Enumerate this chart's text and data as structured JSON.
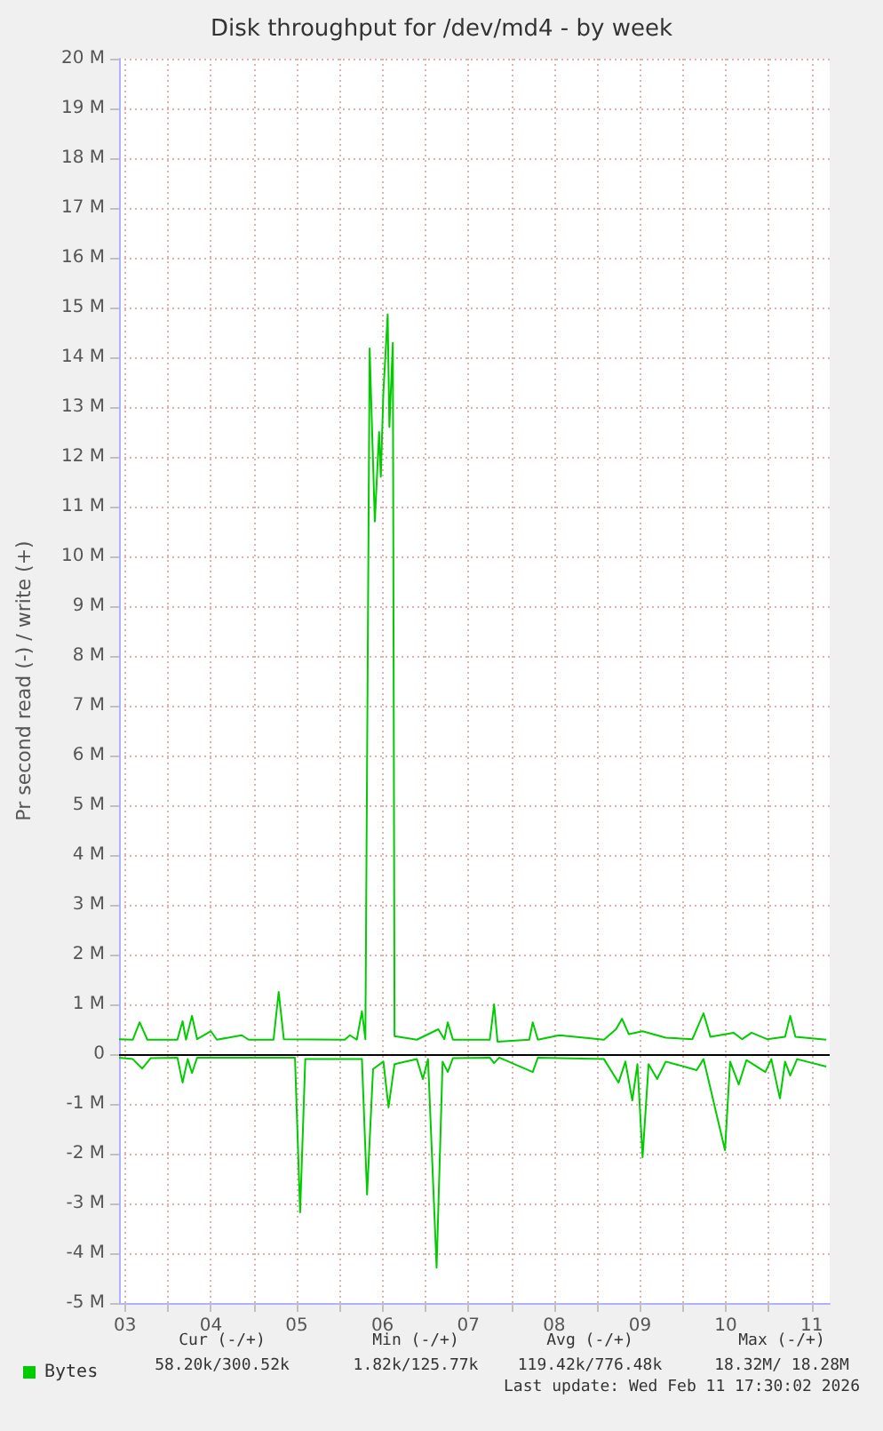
{
  "chart_data": {
    "type": "line",
    "title": "Disk throughput for /dev/md4 - by week",
    "ylabel": "Pr second read (-) / write (+)",
    "xlim": [
      3.43,
      11.71
    ],
    "xticks": [
      {
        "value": 3.5,
        "label": "03"
      },
      {
        "value": 4,
        "label": null
      },
      {
        "value": 4.5,
        "label": "04"
      },
      {
        "value": 5,
        "label": null
      },
      {
        "value": 5.5,
        "label": "05"
      },
      {
        "value": 6,
        "label": null
      },
      {
        "value": 6.5,
        "label": "06"
      },
      {
        "value": 7,
        "label": null
      },
      {
        "value": 7.5,
        "label": "07"
      },
      {
        "value": 8,
        "label": null
      },
      {
        "value": 8.5,
        "label": "08"
      },
      {
        "value": 9,
        "label": null
      },
      {
        "value": 9.5,
        "label": "09"
      },
      {
        "value": 10,
        "label": null
      },
      {
        "value": 10.5,
        "label": "10"
      },
      {
        "value": 11,
        "label": null
      },
      {
        "value": 11.5,
        "label": "11"
      }
    ],
    "ylim": [
      -5,
      20
    ],
    "yticks": [
      {
        "value": -5,
        "label": "-5 M"
      },
      {
        "value": -4,
        "label": "-4 M"
      },
      {
        "value": -3,
        "label": "-3 M"
      },
      {
        "value": -2,
        "label": "-2 M"
      },
      {
        "value": -1,
        "label": "-1 M"
      },
      0,
      {
        "value": 1,
        "label": "1 M"
      },
      {
        "value": 2,
        "label": "2 M"
      },
      {
        "value": 3,
        "label": "3 M"
      },
      {
        "value": 4,
        "label": "4 M"
      },
      {
        "value": 5,
        "label": "5 M"
      },
      {
        "value": 6,
        "label": "6 M"
      },
      {
        "value": 7,
        "label": "7 M"
      },
      {
        "value": 8,
        "label": "8 M"
      },
      {
        "value": 9,
        "label": "9 M"
      },
      {
        "value": 10,
        "label": "10 M"
      },
      {
        "value": 11,
        "label": "11 M"
      },
      {
        "value": 12,
        "label": "12 M"
      },
      {
        "value": 13,
        "label": "13 M"
      },
      {
        "value": 14,
        "label": "14 M"
      },
      {
        "value": 15,
        "label": "15 M"
      },
      {
        "value": 16,
        "label": "16 M"
      },
      {
        "value": 17,
        "label": "17 M"
      },
      {
        "value": 18,
        "label": "18 M"
      },
      {
        "value": 19,
        "label": "19 M"
      },
      {
        "value": 20,
        "label": "20 M"
      }
    ],
    "grid": true,
    "legend": "bottom left",
    "marker": "none",
    "line_style": "solid",
    "ref_lines": [
      {
        "axis": "y",
        "value": 0,
        "color": "#000000"
      }
    ],
    "annotations": [
      "Cur (-/+)",
      "Min (-/+)",
      "Avg (-/+)",
      "Max (-/+)",
      "58.20k/300.52k",
      "1.82k/125.77k",
      "119.42k/776.48k",
      "18.32M/ 18.28M",
      "Last update: Wed Feb 11 17:30:02 2026"
    ],
    "series": [
      {
        "name": "Bytes",
        "color": "#00cc00",
        "x": [
          3.43,
          3.59,
          3.67,
          3.76,
          4.11,
          4.17,
          4.21,
          4.28,
          4.34,
          4.5,
          4.57,
          4.86,
          4.94,
          5.23,
          5.29,
          5.35,
          6.06,
          6.12,
          6.2,
          6.26,
          6.3,
          6.35,
          6.41,
          6.46,
          6.48,
          6.51,
          6.56,
          6.58,
          6.62,
          6.64,
          6.9,
          7.15,
          7.22,
          7.26,
          7.32,
          7.75,
          7.8,
          7.84,
          8.21,
          8.25,
          8.31,
          8.56,
          9.08,
          9.22,
          9.29,
          9.37,
          9.53,
          9.8,
          10.11,
          10.24,
          10.32,
          10.59,
          10.69,
          10.8,
          10.98,
          11.19,
          11.25,
          11.31,
          11.67
        ],
        "values": [
          0.3,
          0.29,
          0.64,
          0.29,
          0.29,
          0.66,
          0.29,
          0.77,
          0.3,
          0.46,
          0.29,
          0.38,
          0.29,
          0.29,
          1.25,
          0.3,
          0.29,
          0.38,
          0.29,
          0.86,
          0.3,
          14.18,
          10.7,
          12.5,
          11.6,
          13.3,
          14.86,
          12.6,
          14.29,
          0.36,
          0.29,
          0.5,
          0.3,
          0.64,
          0.29,
          0.29,
          1.0,
          0.25,
          0.29,
          0.64,
          0.29,
          0.38,
          0.29,
          0.5,
          0.71,
          0.4,
          0.46,
          0.33,
          0.3,
          0.82,
          0.35,
          0.43,
          0.3,
          0.43,
          0.3,
          0.35,
          0.77,
          0.35,
          0.29
        ]
      },
      {
        "color": "#00cc00",
        "x": [
          3.43,
          3.59,
          3.7,
          3.8,
          4.11,
          4.17,
          4.23,
          4.28,
          4.34,
          5.48,
          5.54,
          5.6,
          6.26,
          6.32,
          6.39,
          6.51,
          6.57,
          6.64,
          6.9,
          6.97,
          7.03,
          7.13,
          7.2,
          7.26,
          7.32,
          7.75,
          7.8,
          7.86,
          8.25,
          8.31,
          9.08,
          9.25,
          9.33,
          9.41,
          9.47,
          9.53,
          9.6,
          9.7,
          9.8,
          10.16,
          10.24,
          10.49,
          10.55,
          10.65,
          10.74,
          10.96,
          11.03,
          11.13,
          11.19,
          11.25,
          11.33,
          11.67
        ],
        "values": [
          -0.07,
          -0.1,
          -0.29,
          -0.08,
          -0.07,
          -0.57,
          -0.1,
          -0.38,
          -0.07,
          -0.07,
          -3.18,
          -0.1,
          -0.1,
          -2.82,
          -0.3,
          -0.15,
          -1.07,
          -0.2,
          -0.1,
          -0.5,
          -0.1,
          -4.29,
          -0.15,
          -0.36,
          -0.08,
          -0.07,
          -0.18,
          -0.07,
          -0.36,
          -0.07,
          -0.1,
          -0.57,
          -0.15,
          -0.93,
          -0.2,
          -2.07,
          -0.2,
          -0.5,
          -0.15,
          -0.32,
          -0.1,
          -1.93,
          -0.15,
          -0.61,
          -0.12,
          -0.36,
          -0.1,
          -0.89,
          -0.15,
          -0.43,
          -0.1,
          -0.25
        ]
      }
    ]
  }
}
